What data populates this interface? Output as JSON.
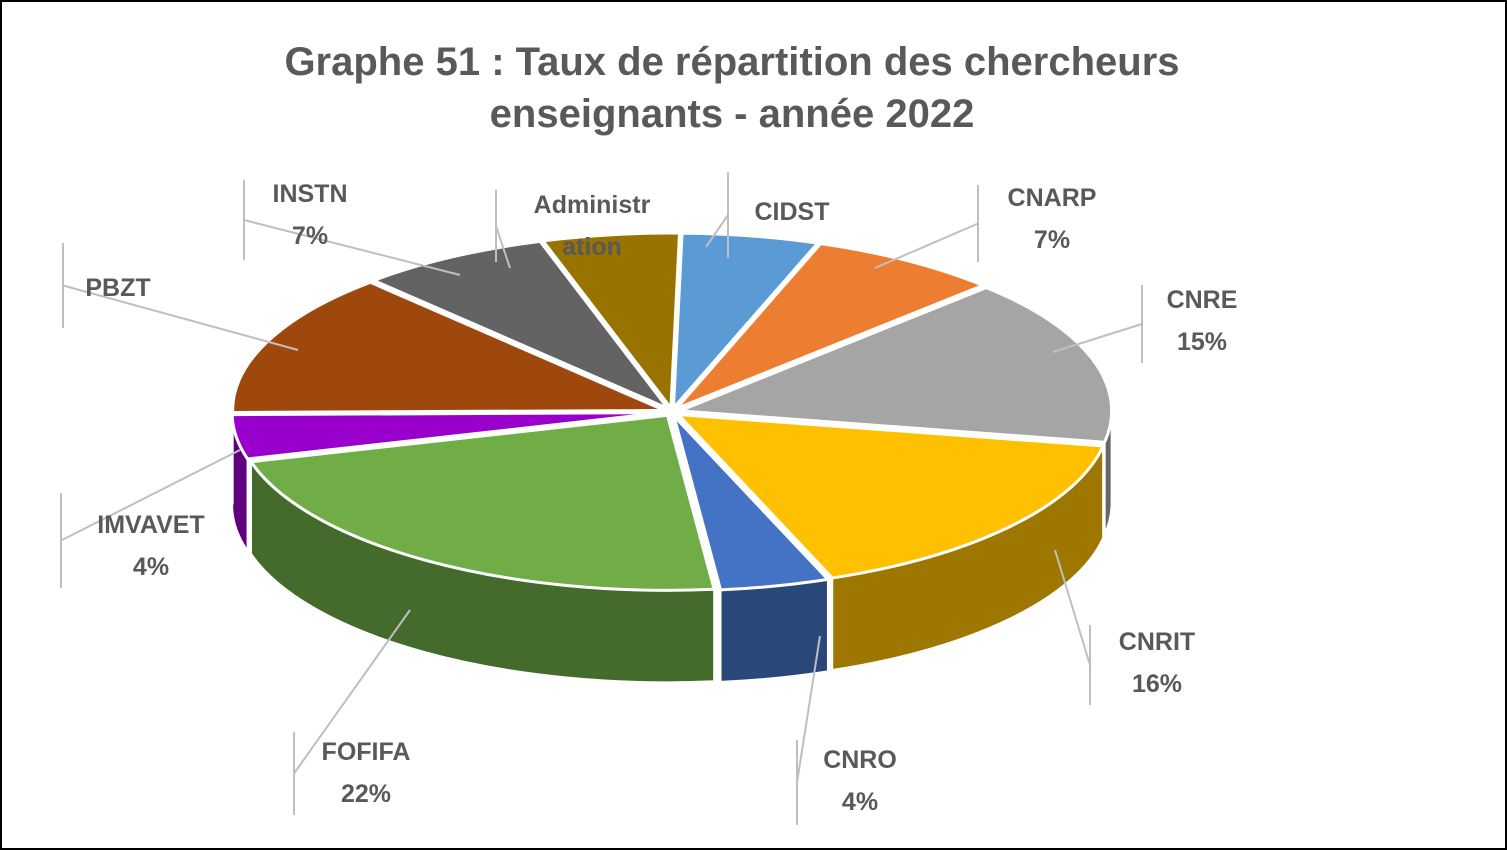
{
  "chart_data": {
    "type": "pie",
    "title_line1": "Graphe 51 : Taux de répartition des chercheurs",
    "title_line2": "enseignants - année 2022",
    "categories": [
      "CIDST",
      "CNARP",
      "CNRE",
      "CNRIT",
      "CNRO",
      "FOFIFA",
      "IMVAVET",
      "PBZT",
      "INSTN",
      "Administration"
    ],
    "values": [
      5,
      7,
      15,
      16,
      4,
      22,
      4,
      13,
      7,
      5
    ],
    "labels": [
      {
        "line1": "CIDST",
        "line2": ""
      },
      {
        "line1": "CNARP",
        "line2": "7%"
      },
      {
        "line1": "CNRE",
        "line2": "15%"
      },
      {
        "line1": "CNRIT",
        "line2": "16%"
      },
      {
        "line1": "CNRO",
        "line2": "4%"
      },
      {
        "line1": "FOFIFA",
        "line2": "22%"
      },
      {
        "line1": "IMVAVET",
        "line2": "4%"
      },
      {
        "line1": "PBZT",
        "line2": ""
      },
      {
        "line1": "INSTN",
        "line2": "7%"
      },
      {
        "line1": "Administr",
        "line2": "ation"
      }
    ],
    "colors": [
      "#5B9BD5",
      "#ED7D31",
      "#A5A5A5",
      "#FFC000",
      "#4472C4",
      "#70AD47",
      "#9900CC",
      "#9E480E",
      "#636363",
      "#997300"
    ],
    "legend": "none"
  }
}
